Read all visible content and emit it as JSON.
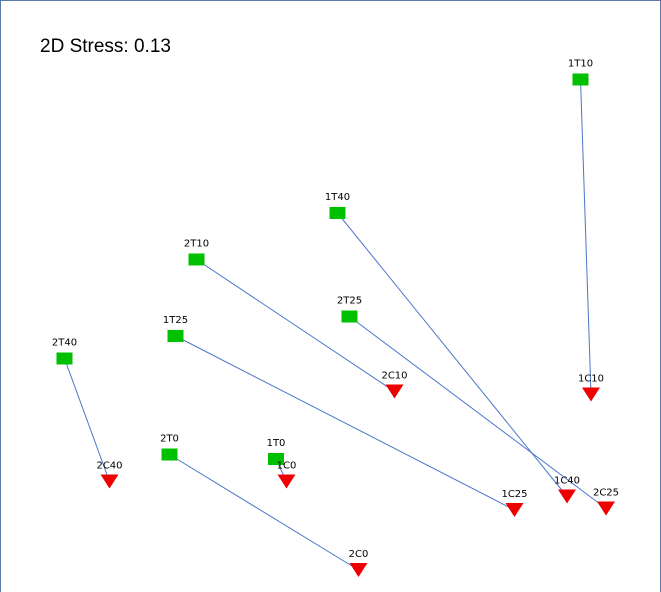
{
  "chart_data": {
    "type": "scatter",
    "title": "2D Stress: 0.13",
    "link_color": "#4a76c8",
    "series": [
      {
        "color": "#00c000",
        "marker": "square",
        "labels": [
          "1T10",
          "1T40",
          "2T10",
          "2T25",
          "1T25",
          "2T40",
          "2T0",
          "1T0"
        ],
        "x": [
          1.67,
          0.05,
          -0.89,
          0.13,
          -1.03,
          -1.77,
          -1.07,
          -0.36
        ],
        "values": [
          1.47,
          0.58,
          0.27,
          -0.11,
          -0.24,
          -0.39,
          -1.03,
          -1.06
        ]
      },
      {
        "color": "#ee0000",
        "marker": "triangle",
        "labels": [
          "1C10",
          "1C40",
          "2C10",
          "2C25",
          "1C25",
          "2C40",
          "2C0",
          "1C0"
        ],
        "x": [
          1.74,
          1.58,
          0.43,
          1.84,
          1.23,
          -1.47,
          0.19,
          -0.29
        ],
        "values": [
          -0.63,
          -1.31,
          -0.61,
          -1.39,
          -1.4,
          -1.21,
          -1.8,
          -1.21
        ]
      }
    ]
  }
}
